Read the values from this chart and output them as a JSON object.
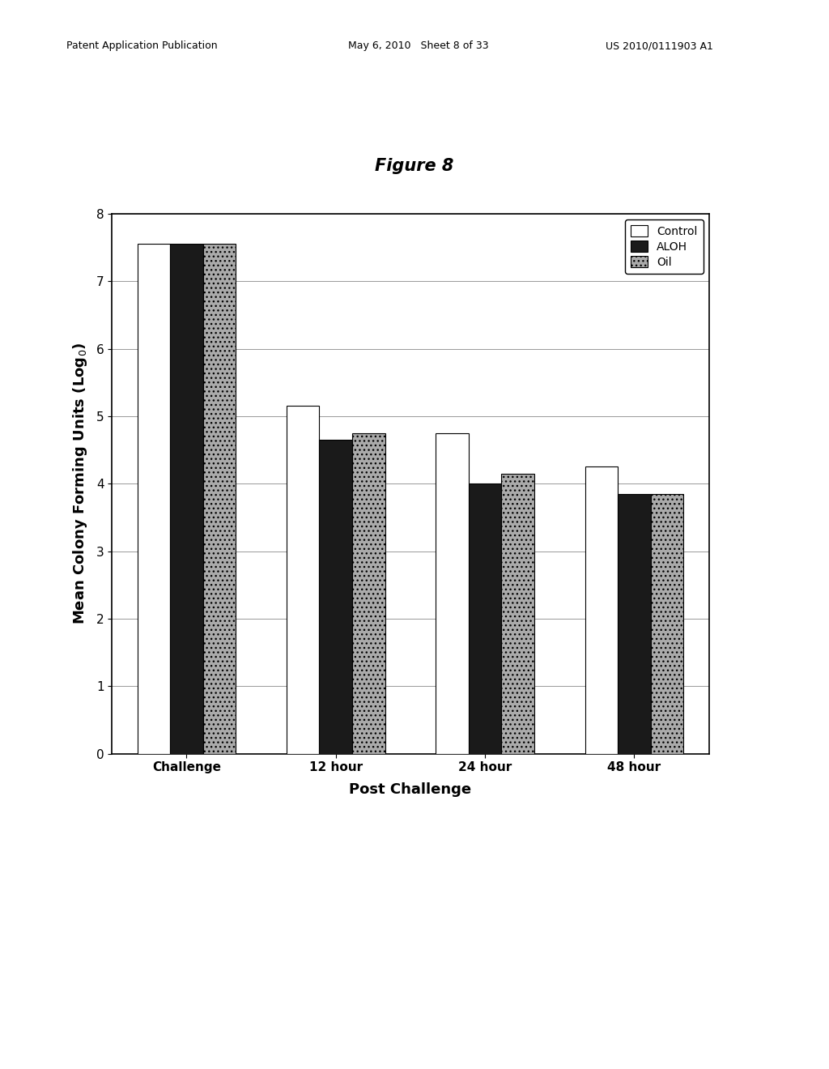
{
  "title": "Figure 8",
  "xlabel": "Post Challenge",
  "ylabel": "Mean Colony Forming Units (Log₀)",
  "categories": [
    "Challenge",
    "12 hour",
    "24 hour",
    "48 hour"
  ],
  "series": {
    "Control": [
      7.55,
      5.15,
      4.75,
      4.25
    ],
    "ALOH": [
      7.55,
      4.65,
      4.0,
      3.85
    ],
    "Oil": [
      7.55,
      4.75,
      4.15,
      3.85
    ]
  },
  "bar_colors": {
    "Control": "#ffffff",
    "ALOH": "#1a1a1a",
    "Oil": "#aaaaaa"
  },
  "bar_hatches": {
    "Control": "",
    "ALOH": "",
    "Oil": "..."
  },
  "bar_edgecolor": "#000000",
  "ylim": [
    0,
    8
  ],
  "yticks": [
    0,
    1,
    2,
    3,
    4,
    5,
    6,
    7,
    8
  ],
  "background_color": "#ffffff",
  "plot_bg_color": "#ffffff",
  "title_fontsize": 15,
  "axis_label_fontsize": 13,
  "tick_fontsize": 11,
  "legend_fontsize": 10,
  "bar_width": 0.22,
  "header_left": "Patent Application Publication",
  "header_mid": "May 6, 2010   Sheet 8 of 33",
  "header_right": "US 2010/0111903 A1"
}
